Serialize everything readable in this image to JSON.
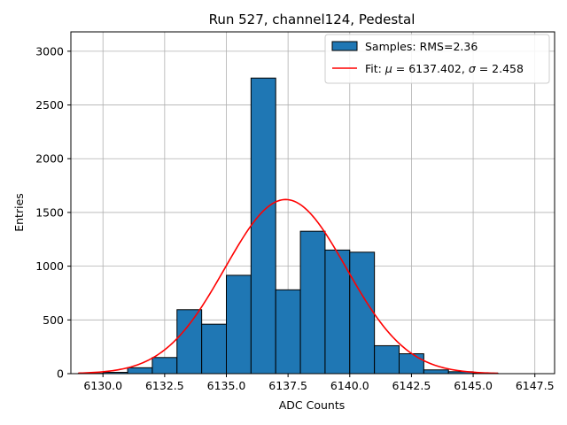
{
  "chart_data": {
    "type": "bar",
    "title": "Run 527, channel124, Pedestal",
    "xlabel": "ADC Counts",
    "ylabel": "Entries",
    "xlim": [
      6128.7,
      6148.3
    ],
    "ylim": [
      0,
      3180
    ],
    "grid": true,
    "xticks": [
      6130.0,
      6132.5,
      6135.0,
      6137.5,
      6140.0,
      6142.5,
      6145.0,
      6147.5
    ],
    "xtick_labels": [
      "6130.0",
      "6132.5",
      "6135.0",
      "6137.5",
      "6140.0",
      "6142.5",
      "6145.0",
      "6147.5"
    ],
    "yticks": [
      0,
      500,
      1000,
      1500,
      2000,
      2500,
      3000
    ],
    "ytick_labels": [
      "0",
      "500",
      "1000",
      "1500",
      "2000",
      "2500",
      "3000"
    ],
    "bin_edges": [
      6129.0,
      6130.0,
      6131.0,
      6132.0,
      6133.0,
      6134.0,
      6135.0,
      6136.0,
      6137.0,
      6138.0,
      6139.0,
      6140.0,
      6141.0,
      6142.0,
      6143.0,
      6144.0,
      6145.0,
      6146.0,
      6147.0
    ],
    "bin_values": [
      3,
      12,
      55,
      150,
      595,
      460,
      915,
      2750,
      780,
      1325,
      1150,
      1130,
      260,
      185,
      35,
      18,
      5,
      0
    ],
    "fit": {
      "mu": 6137.402,
      "sigma": 2.458,
      "amplitude": 1620,
      "x_range": [
        6129.0,
        6146.0
      ]
    },
    "colors": {
      "bar": "#1f77b4",
      "bar_edge": "#000000",
      "fit": "#ff0000",
      "grid": "#b0b0b0"
    },
    "legend": {
      "location": "top-right",
      "entries": [
        {
          "label": "Samples: RMS=2.36",
          "kind": "bar"
        },
        {
          "label_prefix": "Fit: ",
          "mu_symbol": "μ",
          "mu_text": " = 6137.402, ",
          "sigma_symbol": "σ",
          "sigma_text": " = 2.458",
          "kind": "line"
        }
      ]
    }
  }
}
